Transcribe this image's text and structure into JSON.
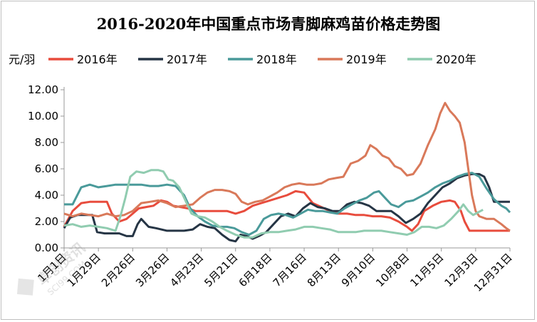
{
  "chart_data": {
    "type": "line",
    "title": "2016-2020年中国重点市场青脚麻鸡苗价格走势图",
    "ylabel": "元/羽",
    "ylim": [
      0,
      12
    ],
    "yticks": [
      "0.00",
      "2.00",
      "4.00",
      "6.00",
      "8.00",
      "10.00",
      "12.00"
    ],
    "x_range": [
      1,
      365
    ],
    "x_ticks": [
      {
        "label": "1月1日",
        "day": 1
      },
      {
        "label": "1月29日",
        "day": 29
      },
      {
        "label": "2月26日",
        "day": 57
      },
      {
        "label": "3月26日",
        "day": 85
      },
      {
        "label": "4月23日",
        "day": 113
      },
      {
        "label": "5月21日",
        "day": 141
      },
      {
        "label": "6月18日",
        "day": 169
      },
      {
        "label": "7月16日",
        "day": 197
      },
      {
        "label": "8月13日",
        "day": 225
      },
      {
        "label": "9月10日",
        "day": 253
      },
      {
        "label": "10月8日",
        "day": 281
      },
      {
        "label": "11月5日",
        "day": 309
      },
      {
        "label": "12月3日",
        "day": 337
      },
      {
        "label": "12月31日",
        "day": 365
      }
    ],
    "legend_position": "top",
    "grid": false,
    "series": [
      {
        "name": "2016年",
        "color": "#e84c3d",
        "points": [
          [
            1,
            1.6
          ],
          [
            8,
            2.8
          ],
          [
            15,
            3.4
          ],
          [
            22,
            3.5
          ],
          [
            29,
            3.5
          ],
          [
            36,
            3.5
          ],
          [
            40,
            2.6
          ],
          [
            46,
            2.0
          ],
          [
            52,
            2.2
          ],
          [
            57,
            2.6
          ],
          [
            62,
            3.0
          ],
          [
            68,
            3.1
          ],
          [
            74,
            3.2
          ],
          [
            80,
            3.6
          ],
          [
            85,
            3.5
          ],
          [
            90,
            3.2
          ],
          [
            96,
            3.1
          ],
          [
            102,
            3.0
          ],
          [
            108,
            2.8
          ],
          [
            113,
            2.8
          ],
          [
            120,
            2.8
          ],
          [
            127,
            2.8
          ],
          [
            134,
            2.8
          ],
          [
            141,
            2.6
          ],
          [
            148,
            2.8
          ],
          [
            155,
            3.2
          ],
          [
            162,
            3.4
          ],
          [
            169,
            3.6
          ],
          [
            176,
            3.8
          ],
          [
            183,
            4.0
          ],
          [
            190,
            4.3
          ],
          [
            197,
            4.2
          ],
          [
            204,
            3.4
          ],
          [
            211,
            3.1
          ],
          [
            218,
            2.8
          ],
          [
            225,
            2.6
          ],
          [
            232,
            2.6
          ],
          [
            239,
            2.5
          ],
          [
            246,
            2.5
          ],
          [
            253,
            2.4
          ],
          [
            260,
            2.4
          ],
          [
            267,
            2.3
          ],
          [
            274,
            2.0
          ],
          [
            281,
            1.6
          ],
          [
            285,
            1.3
          ],
          [
            290,
            1.8
          ],
          [
            295,
            2.8
          ],
          [
            302,
            3.2
          ],
          [
            309,
            3.5
          ],
          [
            316,
            3.6
          ],
          [
            320,
            3.5
          ],
          [
            325,
            2.8
          ],
          [
            328,
            2.0
          ],
          [
            332,
            1.3
          ],
          [
            337,
            1.3
          ],
          [
            345,
            1.3
          ],
          [
            355,
            1.3
          ],
          [
            365,
            1.3
          ]
        ]
      },
      {
        "name": "2017年",
        "color": "#263545",
        "points": [
          [
            1,
            1.5
          ],
          [
            6,
            2.3
          ],
          [
            12,
            2.5
          ],
          [
            18,
            2.5
          ],
          [
            24,
            2.5
          ],
          [
            28,
            1.2
          ],
          [
            34,
            1.1
          ],
          [
            40,
            1.1
          ],
          [
            46,
            1.1
          ],
          [
            52,
            0.9
          ],
          [
            57,
            0.9
          ],
          [
            61,
            1.8
          ],
          [
            64,
            2.2
          ],
          [
            70,
            1.6
          ],
          [
            76,
            1.5
          ],
          [
            85,
            1.3
          ],
          [
            92,
            1.3
          ],
          [
            99,
            1.3
          ],
          [
            106,
            1.4
          ],
          [
            112,
            1.8
          ],
          [
            118,
            1.6
          ],
          [
            124,
            1.5
          ],
          [
            130,
            1.0
          ],
          [
            136,
            0.6
          ],
          [
            141,
            0.5
          ],
          [
            145,
            1.0
          ],
          [
            150,
            0.9
          ],
          [
            155,
            0.7
          ],
          [
            160,
            0.9
          ],
          [
            166,
            1.2
          ],
          [
            172,
            1.8
          ],
          [
            178,
            2.4
          ],
          [
            184,
            2.6
          ],
          [
            190,
            2.4
          ],
          [
            196,
            3.0
          ],
          [
            202,
            3.4
          ],
          [
            208,
            3.1
          ],
          [
            214,
            3.0
          ],
          [
            220,
            2.8
          ],
          [
            226,
            2.8
          ],
          [
            232,
            3.3
          ],
          [
            238,
            3.5
          ],
          [
            244,
            3.4
          ],
          [
            250,
            3.2
          ],
          [
            256,
            2.8
          ],
          [
            262,
            2.8
          ],
          [
            268,
            2.8
          ],
          [
            274,
            2.4
          ],
          [
            280,
            1.9
          ],
          [
            286,
            2.2
          ],
          [
            292,
            2.6
          ],
          [
            298,
            3.4
          ],
          [
            304,
            4.0
          ],
          [
            310,
            4.6
          ],
          [
            316,
            4.9
          ],
          [
            322,
            5.3
          ],
          [
            328,
            5.5
          ],
          [
            334,
            5.6
          ],
          [
            340,
            5.6
          ],
          [
            344,
            5.4
          ],
          [
            348,
            4.6
          ],
          [
            352,
            3.5
          ],
          [
            356,
            3.5
          ],
          [
            360,
            3.5
          ],
          [
            365,
            3.5
          ]
        ]
      },
      {
        "name": "2018年",
        "color": "#4a9a9a",
        "points": [
          [
            1,
            3.3
          ],
          [
            8,
            3.3
          ],
          [
            15,
            4.6
          ],
          [
            22,
            4.8
          ],
          [
            29,
            4.6
          ],
          [
            36,
            4.7
          ],
          [
            43,
            4.8
          ],
          [
            50,
            4.8
          ],
          [
            57,
            4.8
          ],
          [
            64,
            4.8
          ],
          [
            71,
            4.7
          ],
          [
            78,
            4.7
          ],
          [
            85,
            4.8
          ],
          [
            92,
            4.7
          ],
          [
            99,
            4.0
          ],
          [
            104,
            3.0
          ],
          [
            110,
            2.4
          ],
          [
            116,
            2.0
          ],
          [
            122,
            1.7
          ],
          [
            128,
            1.6
          ],
          [
            134,
            1.6
          ],
          [
            140,
            1.5
          ],
          [
            146,
            1.2
          ],
          [
            152,
            1.0
          ],
          [
            158,
            1.3
          ],
          [
            164,
            2.2
          ],
          [
            170,
            2.5
          ],
          [
            176,
            2.6
          ],
          [
            182,
            2.5
          ],
          [
            188,
            2.3
          ],
          [
            194,
            2.6
          ],
          [
            200,
            2.9
          ],
          [
            206,
            2.8
          ],
          [
            212,
            2.8
          ],
          [
            218,
            2.7
          ],
          [
            224,
            2.6
          ],
          [
            230,
            3.0
          ],
          [
            236,
            3.3
          ],
          [
            242,
            3.6
          ],
          [
            248,
            3.8
          ],
          [
            254,
            4.2
          ],
          [
            258,
            4.3
          ],
          [
            263,
            3.8
          ],
          [
            268,
            3.3
          ],
          [
            274,
            3.1
          ],
          [
            280,
            3.5
          ],
          [
            286,
            3.6
          ],
          [
            292,
            3.9
          ],
          [
            298,
            4.2
          ],
          [
            304,
            4.6
          ],
          [
            310,
            4.9
          ],
          [
            316,
            5.1
          ],
          [
            322,
            5.4
          ],
          [
            328,
            5.6
          ],
          [
            334,
            5.7
          ],
          [
            340,
            5.4
          ],
          [
            346,
            4.5
          ],
          [
            352,
            3.7
          ],
          [
            358,
            3.2
          ],
          [
            362,
            3.0
          ],
          [
            365,
            2.7
          ]
        ]
      },
      {
        "name": "2019年",
        "color": "#d9795a",
        "points": [
          [
            1,
            2.6
          ],
          [
            8,
            2.4
          ],
          [
            15,
            2.6
          ],
          [
            22,
            2.5
          ],
          [
            29,
            2.4
          ],
          [
            36,
            2.6
          ],
          [
            43,
            2.4
          ],
          [
            50,
            2.5
          ],
          [
            57,
            2.8
          ],
          [
            64,
            3.4
          ],
          [
            71,
            3.5
          ],
          [
            78,
            3.6
          ],
          [
            85,
            3.4
          ],
          [
            92,
            3.1
          ],
          [
            99,
            3.2
          ],
          [
            106,
            3.3
          ],
          [
            112,
            3.8
          ],
          [
            118,
            4.2
          ],
          [
            124,
            4.4
          ],
          [
            130,
            4.4
          ],
          [
            136,
            4.3
          ],
          [
            141,
            4.1
          ],
          [
            146,
            3.5
          ],
          [
            151,
            3.3
          ],
          [
            157,
            3.5
          ],
          [
            163,
            3.6
          ],
          [
            169,
            3.9
          ],
          [
            175,
            4.2
          ],
          [
            181,
            4.6
          ],
          [
            187,
            4.8
          ],
          [
            193,
            4.9
          ],
          [
            199,
            4.8
          ],
          [
            205,
            4.8
          ],
          [
            211,
            4.9
          ],
          [
            217,
            5.2
          ],
          [
            223,
            5.3
          ],
          [
            229,
            5.4
          ],
          [
            235,
            6.4
          ],
          [
            241,
            6.6
          ],
          [
            247,
            7.0
          ],
          [
            251,
            7.8
          ],
          [
            256,
            7.5
          ],
          [
            261,
            7.0
          ],
          [
            266,
            6.8
          ],
          [
            271,
            6.2
          ],
          [
            276,
            6.0
          ],
          [
            281,
            5.5
          ],
          [
            286,
            5.6
          ],
          [
            292,
            6.4
          ],
          [
            298,
            7.8
          ],
          [
            304,
            9.0
          ],
          [
            308,
            10.2
          ],
          [
            312,
            11.0
          ],
          [
            316,
            10.4
          ],
          [
            320,
            10.0
          ],
          [
            324,
            9.5
          ],
          [
            328,
            8.0
          ],
          [
            331,
            6.0
          ],
          [
            334,
            4.0
          ],
          [
            337,
            2.8
          ],
          [
            340,
            2.4
          ],
          [
            346,
            2.2
          ],
          [
            352,
            2.2
          ],
          [
            358,
            1.8
          ],
          [
            362,
            1.5
          ],
          [
            365,
            1.3
          ]
        ]
      },
      {
        "name": "2020年",
        "color": "#90ccb0",
        "points": [
          [
            1,
            1.7
          ],
          [
            8,
            1.8
          ],
          [
            15,
            1.6
          ],
          [
            22,
            1.7
          ],
          [
            29,
            1.6
          ],
          [
            36,
            1.5
          ],
          [
            43,
            1.3
          ],
          [
            47,
            2.4
          ],
          [
            51,
            3.8
          ],
          [
            55,
            5.4
          ],
          [
            60,
            5.8
          ],
          [
            66,
            5.7
          ],
          [
            72,
            5.9
          ],
          [
            78,
            5.9
          ],
          [
            82,
            5.8
          ],
          [
            86,
            5.2
          ],
          [
            90,
            5.1
          ],
          [
            95,
            4.6
          ],
          [
            100,
            3.6
          ],
          [
            105,
            2.6
          ],
          [
            110,
            2.4
          ],
          [
            116,
            2.3
          ],
          [
            122,
            2.0
          ],
          [
            128,
            1.6
          ],
          [
            134,
            1.3
          ],
          [
            141,
            1.0
          ],
          [
            148,
            0.8
          ],
          [
            155,
            0.8
          ],
          [
            162,
            1.1
          ],
          [
            169,
            1.2
          ],
          [
            176,
            1.2
          ],
          [
            183,
            1.3
          ],
          [
            190,
            1.4
          ],
          [
            197,
            1.6
          ],
          [
            204,
            1.6
          ],
          [
            211,
            1.5
          ],
          [
            218,
            1.4
          ],
          [
            225,
            1.2
          ],
          [
            232,
            1.2
          ],
          [
            239,
            1.2
          ],
          [
            246,
            1.3
          ],
          [
            253,
            1.3
          ],
          [
            260,
            1.3
          ],
          [
            267,
            1.2
          ],
          [
            274,
            1.1
          ],
          [
            281,
            1.0
          ],
          [
            287,
            1.2
          ],
          [
            293,
            1.6
          ],
          [
            299,
            1.6
          ],
          [
            305,
            1.5
          ],
          [
            311,
            1.7
          ],
          [
            317,
            2.2
          ],
          [
            323,
            2.8
          ],
          [
            327,
            3.3
          ],
          [
            331,
            2.8
          ],
          [
            335,
            2.5
          ],
          [
            339,
            2.7
          ],
          [
            343,
            2.9
          ]
        ]
      }
    ]
  },
  "watermark_text": "卓创资讯",
  "watermark_sub": "SCI99.COM"
}
